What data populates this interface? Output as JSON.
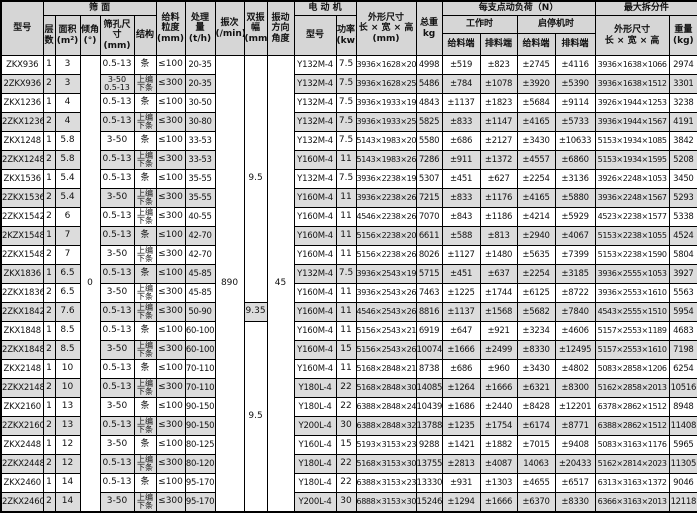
{
  "table": {
    "header": {
      "model": "型号",
      "screen_surface_group": "筛    面",
      "layers": "层\n数",
      "area": "面积\n(m²)",
      "incline": "倾角\n(°)",
      "mesh_size": "筛孔尺\n寸\n(mm)",
      "structure": "结构",
      "feed_size": "给料\n粒度\n(mm)",
      "capacity": "处理\n量\n(t/h)",
      "frequency": "振次\n(/min)",
      "amplitude": "双振\n幅\n(mm)",
      "direction_angle": "振动\n方向\n角度",
      "motor_group": "电  动  机",
      "motor_model": "型号",
      "motor_power": "功率\n(kw)",
      "overall_dims": "外形尺寸\n长 × 宽 × 高\n(mm)",
      "total_weight": "总重\nkg",
      "load_group": "每支点动负荷（N）",
      "working": "工作时",
      "start_stop": "启停机时",
      "feed_end_1": "给料端",
      "discharge_end_1": "排料端",
      "feed_end_2": "给料端",
      "discharge_end_2": "排料端",
      "max_split_group": "最大拆分件",
      "split_dims": "外形尺寸\n长 × 宽 × 高",
      "split_weight": "重量\n(kg)"
    },
    "merged": {
      "incline": "0",
      "frequency": "890",
      "direction_angle": "45"
    },
    "amplitude_segments": [
      {
        "value": "9.5",
        "span": 13
      },
      {
        "value": "9.35",
        "span": 1
      },
      {
        "value": "9.5",
        "span": 10
      }
    ],
    "rows": [
      {
        "model": "ZKX936",
        "layers": "1",
        "area": "3",
        "mesh": "0.5-13",
        "structure": "条",
        "feed": "≤100",
        "capacity": "20-35",
        "motor": "Y132M-4",
        "power": "7.5",
        "dims": "3936×1628×2049",
        "total_weight": "4998",
        "work_feed": "±519",
        "work_discharge": "±823",
        "start_feed": "±2745",
        "start_discharge": "±4116",
        "split_dims": "3936×1638×1066",
        "split_weight": "2974"
      },
      {
        "model": "2ZKX936",
        "layers": "2",
        "area": "3",
        "mesh": "3-50\n0.5-13",
        "structure": "上编\n下条",
        "feed": "≤300",
        "capacity": "20-35",
        "motor": "Y132M-4",
        "power": "7.5",
        "dims": "3936×1628×2597",
        "total_weight": "5486",
        "work_feed": "±784",
        "work_discharge": "±1078",
        "start_feed": "±3920",
        "start_discharge": "±5390",
        "split_dims": "3936×1638×1512",
        "split_weight": "3301"
      },
      {
        "model": "ZKX1236",
        "layers": "1",
        "area": "4",
        "mesh": "0.5-13",
        "structure": "条",
        "feed": "≤100",
        "capacity": "30-50",
        "motor": "Y132M-4",
        "power": "7.5",
        "dims": "3936×1933×1930",
        "total_weight": "4843",
        "work_feed": "±1137",
        "work_discharge": "±1823",
        "start_feed": "±5684",
        "start_discharge": "±9114",
        "split_dims": "3926×1944×1253",
        "split_weight": "3238"
      },
      {
        "model": "2ZKX1236",
        "layers": "2",
        "area": "4",
        "mesh": "0.5-13",
        "structure": "上编\n下条",
        "feed": "≤300",
        "capacity": "30-80",
        "motor": "Y132M-4",
        "power": "7.5",
        "dims": "3936×1933×2510",
        "total_weight": "5825",
        "work_feed": "±833",
        "work_discharge": "±1147",
        "start_feed": "±4165",
        "start_discharge": "±5733",
        "split_dims": "3936×1944×1567",
        "split_weight": "4191"
      },
      {
        "model": "ZKX1248",
        "layers": "1",
        "area": "5.8",
        "mesh": "3-50",
        "structure": "条",
        "feed": "≤100",
        "capacity": "33-53",
        "motor": "Y132M-4",
        "power": "7.5",
        "dims": "5143×1983×2057",
        "total_weight": "5580",
        "work_feed": "±686",
        "work_discharge": "±2127",
        "start_feed": "±3430",
        "start_discharge": "±10633",
        "split_dims": "5153×1934×1085",
        "split_weight": "3842"
      },
      {
        "model": "2ZKX1248",
        "layers": "2",
        "area": "5.8",
        "mesh": "0.5-13",
        "structure": "上编\n下条",
        "feed": "≤300",
        "capacity": "33-53",
        "motor": "Y160M-4",
        "power": "11",
        "dims": "5143×1983×2600",
        "total_weight": "7286",
        "work_feed": "±911",
        "work_discharge": "±1372",
        "start_feed": "±4557",
        "start_discharge": "±6860",
        "split_dims": "5153×1934×1595",
        "split_weight": "5208"
      },
      {
        "model": "ZKX1536",
        "layers": "1",
        "area": "5.4",
        "mesh": "0.5-13",
        "structure": "条",
        "feed": "≤100",
        "capacity": "35-55",
        "motor": "Y132M-4",
        "power": "7.5",
        "dims": "3936×2238×1917",
        "total_weight": "5307",
        "work_feed": "±451",
        "work_discharge": "±627",
        "start_feed": "±2254",
        "start_discharge": "±3136",
        "split_dims": "3926×2248×1053",
        "split_weight": "3450"
      },
      {
        "model": "2ZKX1536",
        "layers": "2",
        "area": "5.4",
        "mesh": "3-50",
        "structure": "上编\n下条",
        "feed": "≤300",
        "capacity": "35-55",
        "motor": "Y160M-4",
        "power": "11",
        "dims": "3936×2238×2609",
        "total_weight": "7215",
        "work_feed": "±833",
        "work_discharge": "±1176",
        "start_feed": "±4165",
        "start_discharge": "±5880",
        "split_dims": "3936×2248×1567",
        "split_weight": "5293"
      },
      {
        "model": "2ZKX1542",
        "layers": "2",
        "area": "6",
        "mesh": "0.5-13",
        "structure": "上编\n下条",
        "feed": "≤300",
        "capacity": "40-55",
        "motor": "Y160M-4",
        "power": "11",
        "dims": "4546×2238×2617",
        "total_weight": "7070",
        "work_feed": "±843",
        "work_discharge": "±1186",
        "start_feed": "±4214",
        "start_discharge": "±5929",
        "split_dims": "4523×2238×1577",
        "split_weight": "5338"
      },
      {
        "model": "2KZX1548",
        "layers": "1",
        "area": "7",
        "mesh": "0.5-13",
        "structure": "条",
        "feed": "≤100",
        "capacity": "42-70",
        "motor": "Y160M-4",
        "power": "11",
        "dims": "5156×2238×2089",
        "total_weight": "6611",
        "work_feed": "±588",
        "work_discharge": "±813",
        "start_feed": "±2940",
        "start_discharge": "±4067",
        "split_dims": "5153×2238×1055",
        "split_weight": "4524"
      },
      {
        "model": "2ZKX1548",
        "layers": "2",
        "area": "7",
        "mesh": "3-50",
        "structure": "上编\n下条",
        "feed": "≤300",
        "capacity": "42-70",
        "motor": "Y160M-4",
        "power": "11",
        "dims": "5156×2238×2611",
        "total_weight": "8026",
        "work_feed": "±1127",
        "work_discharge": "±1480",
        "start_feed": "±5635",
        "start_discharge": "±7399",
        "split_dims": "5153×2238×1590",
        "split_weight": "5804"
      },
      {
        "model": "ZKX1836",
        "layers": "1",
        "area": "6.5",
        "mesh": "0.5-13",
        "structure": "条",
        "feed": "≤100",
        "capacity": "45-85",
        "motor": "Y132M-4",
        "power": "7.5",
        "dims": "3936×2543×1942",
        "total_weight": "5715",
        "work_feed": "±451",
        "work_discharge": "±637",
        "start_feed": "±2254",
        "start_discharge": "±3185",
        "split_dims": "3936×2555×1053",
        "split_weight": "3927"
      },
      {
        "model": "2ZKX1836",
        "layers": "2",
        "area": "6.5",
        "mesh": "3-50",
        "structure": "上编\n下条",
        "feed": "≤300",
        "capacity": "45-85",
        "motor": "Y160M-4",
        "power": "11",
        "dims": "3936×2543×2634",
        "total_weight": "7463",
        "work_feed": "±1225",
        "work_discharge": "±1744",
        "start_feed": "±6125",
        "start_discharge": "±8722",
        "split_dims": "3936×2553×1610",
        "split_weight": "5563"
      },
      {
        "model": "2ZKX1842",
        "layers": "2",
        "area": "7.6",
        "mesh": "0.5-13",
        "structure": "上编\n下条",
        "feed": "≤300",
        "capacity": "50-90",
        "motor": "Y160M-4",
        "power": "11",
        "dims": "4546×2543×2634",
        "total_weight": "8816",
        "work_feed": "±1137",
        "work_discharge": "±1568",
        "start_feed": "±5682",
        "start_discharge": "±7840",
        "split_dims": "4543×2555×1510",
        "split_weight": "5954"
      },
      {
        "model": "ZKX1848",
        "layers": "1",
        "area": "8.5",
        "mesh": "0.5-13",
        "structure": "条",
        "feed": "≤100",
        "capacity": "60-100",
        "motor": "Y160M-4",
        "power": "11",
        "dims": "5156×2543×2137",
        "total_weight": "6919",
        "work_feed": "±647",
        "work_discharge": "±921",
        "start_feed": "±3234",
        "start_discharge": "±4606",
        "split_dims": "5157×2553×1189",
        "split_weight": "4683"
      },
      {
        "model": "2ZKX1848",
        "layers": "2",
        "area": "8.5",
        "mesh": "3-50",
        "structure": "上编\n下条",
        "feed": "≤300",
        "capacity": "60-100",
        "motor": "Y160M-4",
        "power": "15",
        "dims": "5156×2543×2668",
        "total_weight": "10074",
        "work_feed": "±1666",
        "work_discharge": "±2499",
        "start_feed": "±8330",
        "start_discharge": "±12495",
        "split_dims": "5157×2553×1610",
        "split_weight": "7198"
      },
      {
        "model": "ZKX2148",
        "layers": "1",
        "area": "10",
        "mesh": "0.5-13",
        "structure": "条",
        "feed": "≤100",
        "capacity": "70-110",
        "motor": "Y160M-4",
        "power": "11",
        "dims": "5168×2848×2174",
        "total_weight": "8738",
        "work_feed": "±686",
        "work_discharge": "±960",
        "start_feed": "±3430",
        "start_discharge": "±4802",
        "split_dims": "5083×2858×1206",
        "split_weight": "6254"
      },
      {
        "model": "2ZKX2148",
        "layers": "2",
        "area": "10",
        "mesh": "0.5-13",
        "structure": "上编\n下条",
        "feed": "≤300",
        "capacity": "70-110",
        "motor": "Y180L-4",
        "power": "22",
        "dims": "5168×2848×3033",
        "total_weight": "14085",
        "work_feed": "±1264",
        "work_discharge": "±1666",
        "start_feed": "±6321",
        "start_discharge": "±8300",
        "split_dims": "5162×2858×2013",
        "split_weight": "10516"
      },
      {
        "model": "ZKX2160",
        "layers": "1",
        "area": "13",
        "mesh": "3-50",
        "structure": "条",
        "feed": "≤100",
        "capacity": "90-150",
        "motor": "Y180L-4",
        "power": "22",
        "dims": "6388×2848×2478",
        "total_weight": "10439",
        "work_feed": "±1686",
        "work_discharge": "±2440",
        "start_feed": "±8428",
        "start_discharge": "±12201",
        "split_dims": "6378×2862×1512",
        "split_weight": "8948"
      },
      {
        "model": "2ZKX2160",
        "layers": "2",
        "area": "13",
        "mesh": "0.5-13",
        "structure": "上编\n下条",
        "feed": "≤300",
        "capacity": "90-150",
        "motor": "Y200L-4",
        "power": "30",
        "dims": "6388×2848×3222",
        "total_weight": "13788",
        "work_feed": "±1235",
        "work_discharge": "±1754",
        "start_feed": "±6174",
        "start_discharge": "±8771",
        "split_dims": "6388×2862×1512",
        "split_weight": "11408"
      },
      {
        "model": "ZKX2448",
        "layers": "1",
        "area": "12",
        "mesh": "3-50",
        "structure": "条",
        "feed": "≤100",
        "capacity": "80-125",
        "motor": "Y160L-4",
        "power": "15",
        "dims": "5193×3153×2335",
        "total_weight": "9288",
        "work_feed": "±1421",
        "work_discharge": "±1882",
        "start_feed": "±7015",
        "start_discharge": "±9408",
        "split_dims": "5083×3163×1176",
        "split_weight": "5965"
      },
      {
        "model": "2ZKX2448",
        "layers": "2",
        "area": "12",
        "mesh": "0.5-13",
        "structure": "上编\n下条",
        "feed": "≤300",
        "capacity": "80-120",
        "motor": "Y180L-4",
        "power": "22",
        "dims": "5168×3153×3033",
        "total_weight": "13755",
        "work_feed": "±2813",
        "work_discharge": "±4087",
        "start_feed": "14063",
        "start_discharge": "±20433",
        "split_dims": "5162×2814×2023",
        "split_weight": "11305"
      },
      {
        "model": "ZKX2460",
        "layers": "1",
        "area": "14",
        "mesh": "0.5-13",
        "structure": "条",
        "feed": "≤100",
        "capacity": "95-170",
        "motor": "Y180L-4",
        "power": "22",
        "dims": "6388×3153×2386",
        "total_weight": "13330",
        "work_feed": "±931",
        "work_discharge": "±1303",
        "start_feed": "±4655",
        "start_discharge": "±6517",
        "split_dims": "6313×3163×1372",
        "split_weight": "9046"
      },
      {
        "model": "2ZKX2460",
        "layers": "2",
        "area": "14",
        "mesh": "3-50",
        "structure": "上编\n下条",
        "feed": "≤300",
        "capacity": "95-170",
        "motor": "Y200L-4",
        "power": "30",
        "dims": "6888×3153×3033",
        "total_weight": "15246",
        "work_feed": "±1294",
        "work_discharge": "±1666",
        "start_feed": "±6370",
        "start_discharge": "±8330",
        "split_dims": "6366×3163×2013",
        "split_weight": "12118"
      }
    ]
  }
}
